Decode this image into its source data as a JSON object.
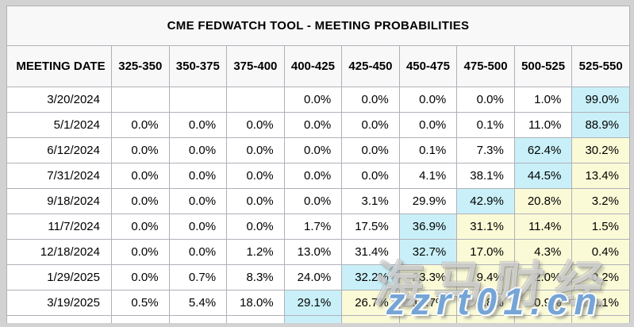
{
  "colors": {
    "page_bg": "#d2d2d2",
    "header_bg": "#f8f8f8",
    "border": "#b0b0ba",
    "highlight_cyan": "#c9f0f8",
    "highlight_yellow": "#fafad6"
  },
  "watermark": {
    "line1": "海马财经",
    "line2": "zzrt01.cn"
  },
  "chart_data": {
    "type": "table",
    "title": "CME FEDWATCH TOOL - MEETING PROBABILITIES",
    "columns": [
      "MEETING DATE",
      "325-350",
      "350-375",
      "375-400",
      "400-425",
      "425-450",
      "450-475",
      "475-500",
      "500-525",
      "525-550"
    ],
    "rows": [
      {
        "date": "3/20/2024",
        "values": [
          "",
          "",
          "",
          "0.0%",
          "0.0%",
          "0.0%",
          "0.0%",
          "1.0%",
          "99.0%"
        ],
        "highlights": [
          "",
          "",
          "",
          "",
          "",
          "",
          "",
          "",
          "cyan"
        ]
      },
      {
        "date": "5/1/2024",
        "values": [
          "0.0%",
          "0.0%",
          "0.0%",
          "0.0%",
          "0.0%",
          "0.0%",
          "0.1%",
          "11.0%",
          "88.9%"
        ],
        "highlights": [
          "",
          "",
          "",
          "",
          "",
          "",
          "",
          "",
          "cyan"
        ]
      },
      {
        "date": "6/12/2024",
        "values": [
          "0.0%",
          "0.0%",
          "0.0%",
          "0.0%",
          "0.0%",
          "0.1%",
          "7.3%",
          "62.4%",
          "30.2%"
        ],
        "highlights": [
          "",
          "",
          "",
          "",
          "",
          "",
          "",
          "cyan",
          "yellow"
        ]
      },
      {
        "date": "7/31/2024",
        "values": [
          "0.0%",
          "0.0%",
          "0.0%",
          "0.0%",
          "0.0%",
          "4.1%",
          "38.1%",
          "44.5%",
          "13.4%"
        ],
        "highlights": [
          "",
          "",
          "",
          "",
          "",
          "",
          "",
          "cyan",
          "yellow"
        ]
      },
      {
        "date": "9/18/2024",
        "values": [
          "0.0%",
          "0.0%",
          "0.0%",
          "0.0%",
          "3.1%",
          "29.9%",
          "42.9%",
          "20.8%",
          "3.2%"
        ],
        "highlights": [
          "",
          "",
          "",
          "",
          "",
          "",
          "cyan",
          "yellow",
          "yellow"
        ]
      },
      {
        "date": "11/7/2024",
        "values": [
          "0.0%",
          "0.0%",
          "0.0%",
          "1.7%",
          "17.5%",
          "36.9%",
          "31.1%",
          "11.4%",
          "1.5%"
        ],
        "highlights": [
          "",
          "",
          "",
          "",
          "",
          "cyan",
          "yellow",
          "yellow",
          "yellow"
        ]
      },
      {
        "date": "12/18/2024",
        "values": [
          "0.0%",
          "0.0%",
          "1.2%",
          "13.0%",
          "31.4%",
          "32.7%",
          "17.0%",
          "4.3%",
          "0.4%"
        ],
        "highlights": [
          "",
          "",
          "",
          "",
          "",
          "cyan",
          "yellow",
          "yellow",
          "yellow"
        ]
      },
      {
        "date": "1/29/2025",
        "values": [
          "0.0%",
          "0.7%",
          "8.3%",
          "24.0%",
          "32.2%",
          "23.3%",
          "9.4%",
          "2.0%",
          "0.2%"
        ],
        "highlights": [
          "",
          "",
          "",
          "",
          "cyan",
          "yellow",
          "yellow",
          "yellow",
          "yellow"
        ]
      },
      {
        "date": "3/19/2025",
        "values": [
          "0.5%",
          "5.4%",
          "18.0%",
          "29.1%",
          "26.7%",
          "14.7%",
          "4.8%",
          "0.9%",
          "0.1%"
        ],
        "highlights": [
          "",
          "",
          "",
          "cyan",
          "yellow",
          "yellow",
          "yellow",
          "yellow",
          "yellow"
        ]
      },
      {
        "date": "",
        "values": [
          "",
          "",
          "",
          "",
          "",
          "",
          "",
          "",
          ""
        ],
        "highlights": [
          "",
          "",
          "",
          "cyan",
          "yellow",
          "yellow",
          "yellow",
          "yellow",
          "yellow"
        ]
      }
    ]
  }
}
